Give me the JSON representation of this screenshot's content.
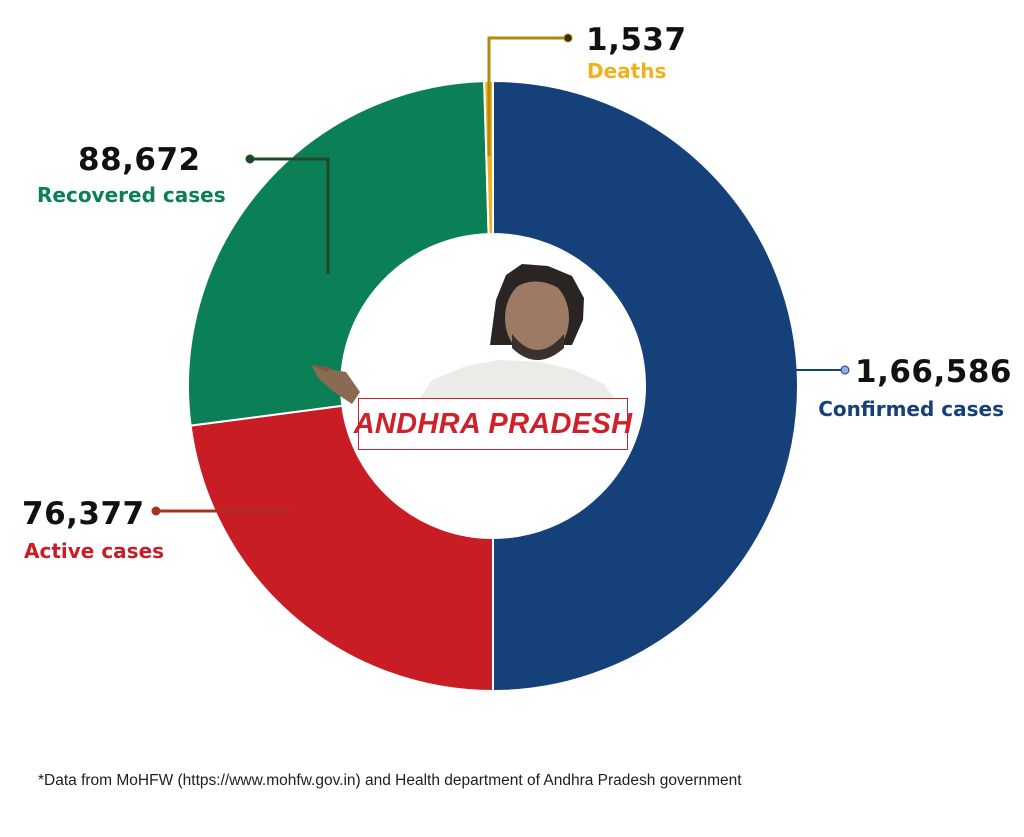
{
  "chart_data": {
    "type": "pie",
    "variant": "donut",
    "center_label": "ANDHRA PRADESH",
    "slices": [
      {
        "key": "confirmed",
        "value": 166586,
        "value_label": "1,66,586",
        "label": "Confirmed cases",
        "color": "#15407a"
      },
      {
        "key": "active",
        "value": 76377,
        "value_label": "76,377",
        "label": "Active cases",
        "color": "#c81d25"
      },
      {
        "key": "recovered",
        "value": 88672,
        "value_label": "88,672",
        "label": "Recovered cases",
        "color": "#0b7f56"
      },
      {
        "key": "deaths",
        "value": 1537,
        "value_label": "1,537",
        "label": "Deaths",
        "color": "#f2b01e"
      }
    ]
  },
  "colors": {
    "confirmed_leader": "#15407a",
    "active_leader": "#a8321f",
    "recovered_leader": "#1f4a2a",
    "deaths_leader": "#b08a0e",
    "separator": "#ffffff"
  },
  "illustration": "portrait-photo",
  "footnote": "*Data from MoHFW (https://www.mohfw.gov.in) and Health department of Andhra Pradesh government"
}
